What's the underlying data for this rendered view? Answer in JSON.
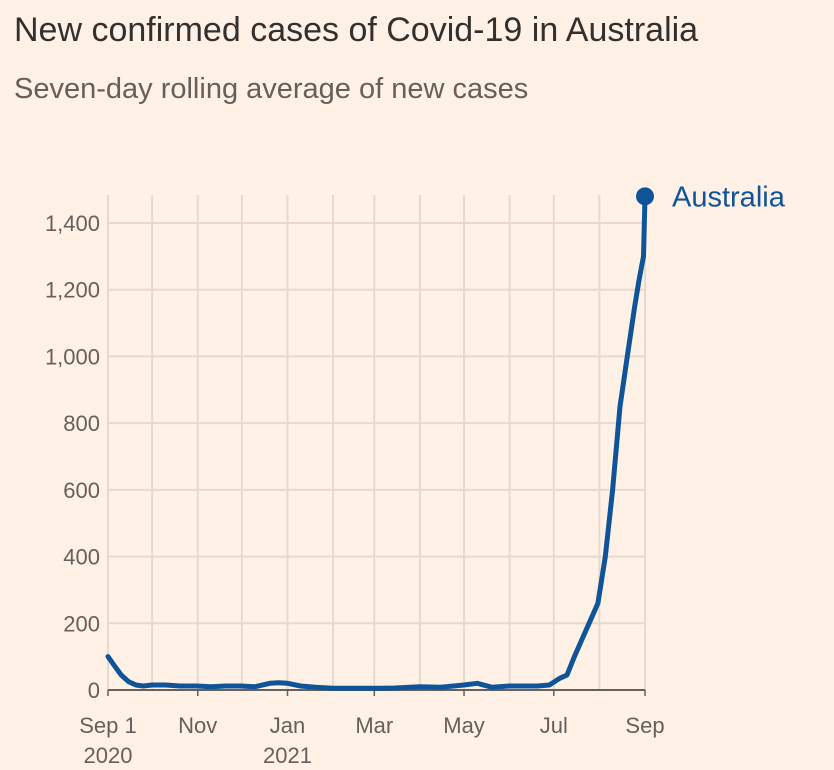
{
  "title": "New confirmed cases of Covid-19 in Australia",
  "subtitle": "Seven-day rolling average of new cases",
  "colors": {
    "background": "#fff1e5",
    "line": "#0f5499",
    "grid": "#e6d9ce",
    "axis": "#66605c",
    "text": "#66605c"
  },
  "chart_data": {
    "type": "line",
    "title": "New confirmed cases of Covid-19 in Australia",
    "subtitle": "Seven-day rolling average of new cases",
    "xlabel": "",
    "ylabel": "",
    "ylim": [
      0,
      1500
    ],
    "xlim": [
      "2020-09-01",
      "2021-09-01"
    ],
    "y_ticks": [
      0,
      200,
      400,
      600,
      800,
      1000,
      1200,
      1400
    ],
    "y_tick_labels": [
      "0",
      "200",
      "400",
      "600",
      "800",
      "1,000",
      "1,200",
      "1,400"
    ],
    "x_ticks": [
      {
        "date": "2020-09-01",
        "label": "Sep 1",
        "sublabel": "2020"
      },
      {
        "date": "2020-11-01",
        "label": "Nov",
        "sublabel": ""
      },
      {
        "date": "2021-01-01",
        "label": "Jan",
        "sublabel": "2021"
      },
      {
        "date": "2021-03-01",
        "label": "Mar",
        "sublabel": ""
      },
      {
        "date": "2021-05-01",
        "label": "May",
        "sublabel": ""
      },
      {
        "date": "2021-07-01",
        "label": "Jul",
        "sublabel": ""
      },
      {
        "date": "2021-09-01",
        "label": "Sep",
        "sublabel": ""
      }
    ],
    "grid": true,
    "series": [
      {
        "name": "Australia",
        "color": "#0f5499",
        "x": [
          "2020-09-01",
          "2020-09-05",
          "2020-09-10",
          "2020-09-15",
          "2020-09-20",
          "2020-09-25",
          "2020-10-01",
          "2020-10-10",
          "2020-10-20",
          "2020-10-31",
          "2020-11-10",
          "2020-11-20",
          "2020-11-30",
          "2020-12-10",
          "2020-12-20",
          "2020-12-26",
          "2021-01-01",
          "2021-01-10",
          "2021-01-20",
          "2021-02-01",
          "2021-02-15",
          "2021-03-01",
          "2021-03-15",
          "2021-04-01",
          "2021-04-15",
          "2021-05-01",
          "2021-05-10",
          "2021-05-20",
          "2021-06-01",
          "2021-06-10",
          "2021-06-20",
          "2021-06-28",
          "2021-07-05",
          "2021-07-10",
          "2021-07-15",
          "2021-07-20",
          "2021-07-25",
          "2021-07-31",
          "2021-08-05",
          "2021-08-10",
          "2021-08-15",
          "2021-08-20",
          "2021-08-25",
          "2021-08-28",
          "2021-08-31",
          "2021-09-01"
        ],
        "y": [
          100,
          75,
          45,
          25,
          15,
          12,
          15,
          15,
          12,
          12,
          10,
          12,
          12,
          10,
          20,
          22,
          20,
          12,
          8,
          5,
          5,
          5,
          6,
          10,
          8,
          15,
          20,
          8,
          12,
          12,
          12,
          15,
          35,
          45,
          100,
          150,
          200,
          260,
          400,
          600,
          850,
          1000,
          1150,
          1230,
          1300,
          1480
        ]
      }
    ],
    "annotations": [
      {
        "text": "Australia",
        "series": "Australia",
        "at": "end"
      }
    ]
  }
}
